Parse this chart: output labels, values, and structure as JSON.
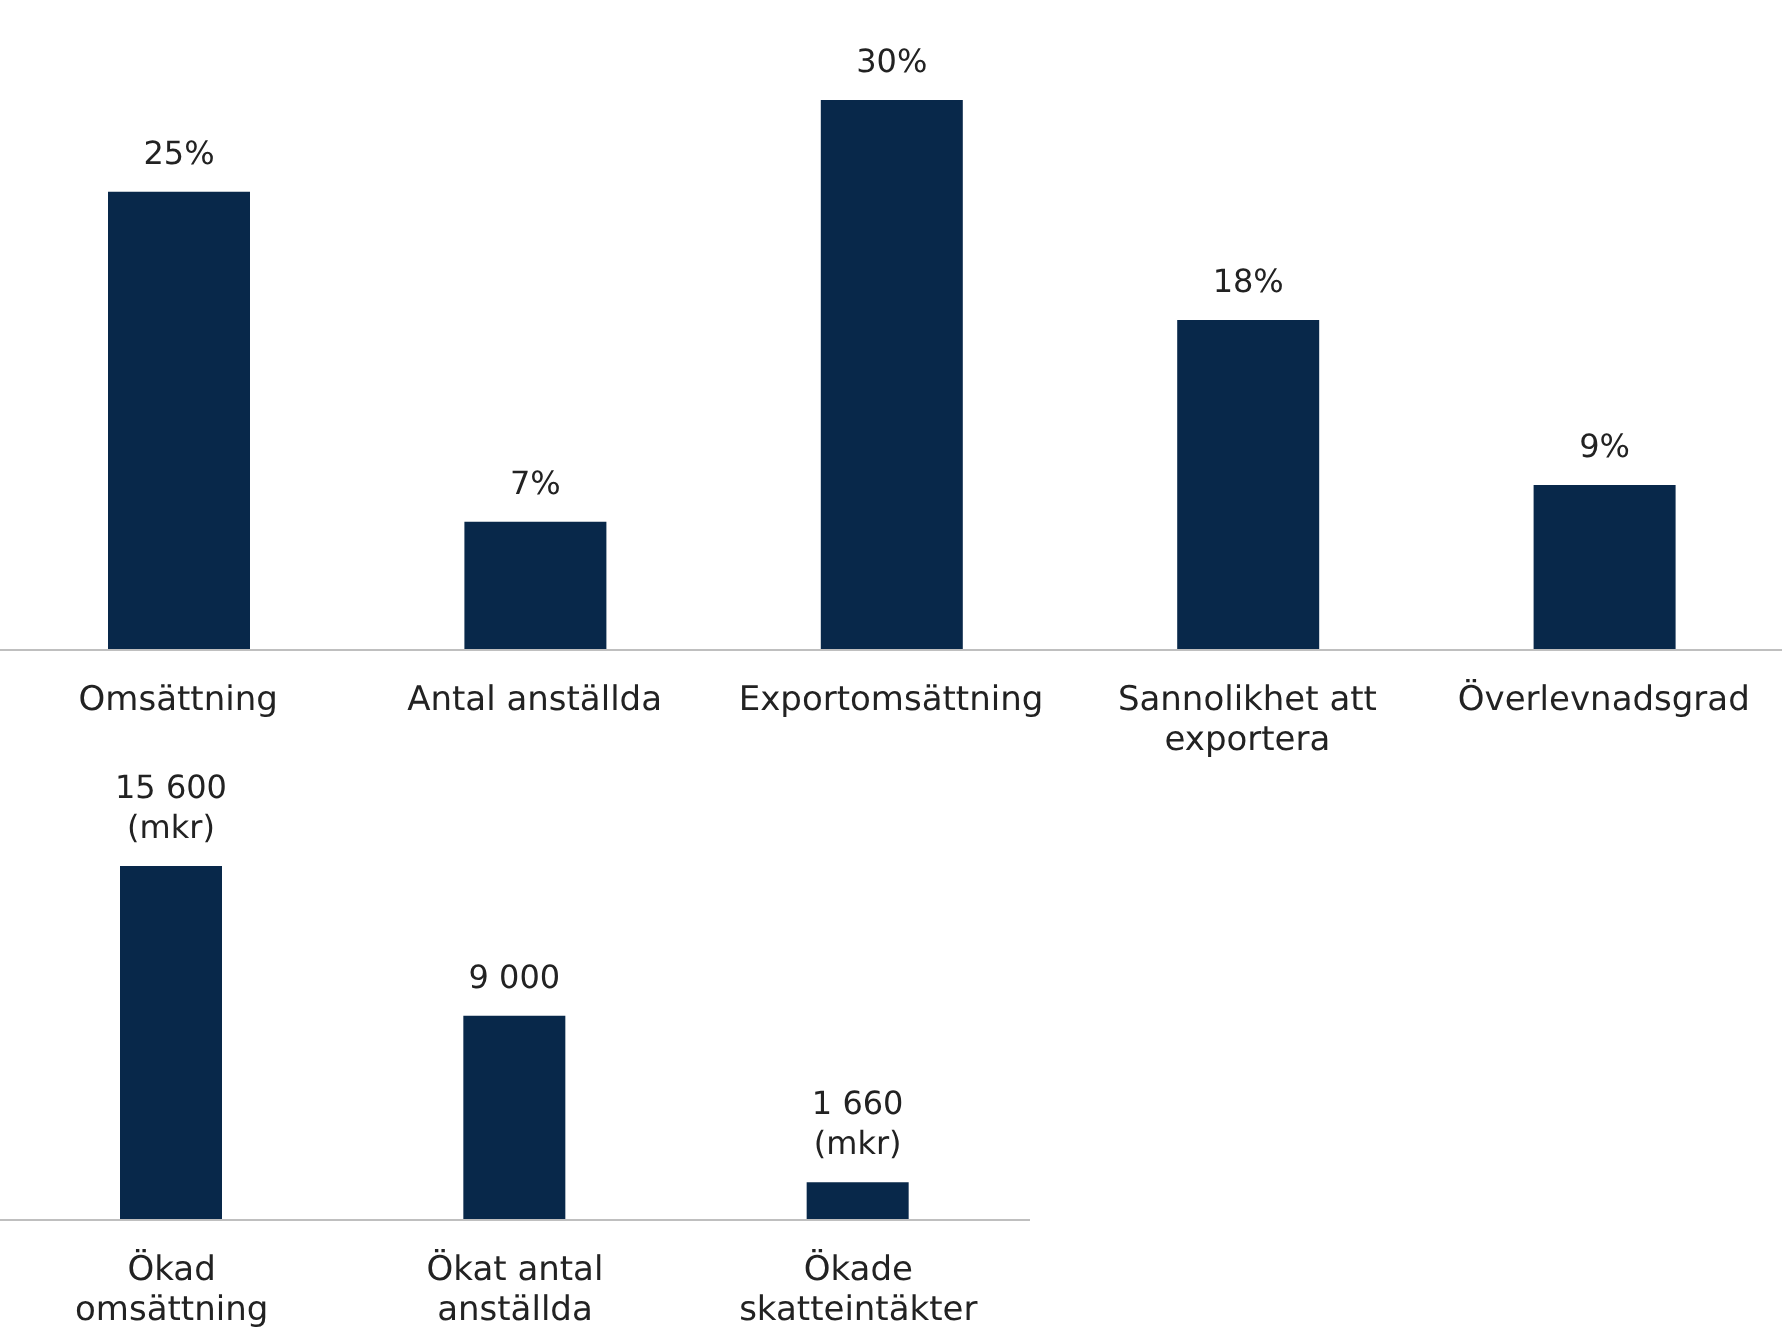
{
  "chart_data": [
    {
      "type": "bar",
      "categories": [
        "Omsättning",
        "Antal anställda",
        "Exportomsättning",
        "Sannolikhet att exportera",
        "Överlevnadsgrad"
      ],
      "values": [
        25,
        7,
        30,
        18,
        9
      ],
      "value_labels": [
        "25%",
        "7%",
        "30%",
        "18%",
        "9%"
      ],
      "color": "#08284a",
      "grid": false,
      "legend": false
    },
    {
      "type": "bar",
      "categories": [
        "Ökad omsättning",
        "Ökat antal anställda",
        "Ökade skatteintäkter"
      ],
      "values": [
        15600,
        9000,
        1660
      ],
      "value_labels": [
        "15 600\n(mkr)",
        "9 000",
        "1 660\n(mkr)"
      ],
      "color": "#08284a",
      "grid": false,
      "legend": false
    }
  ]
}
